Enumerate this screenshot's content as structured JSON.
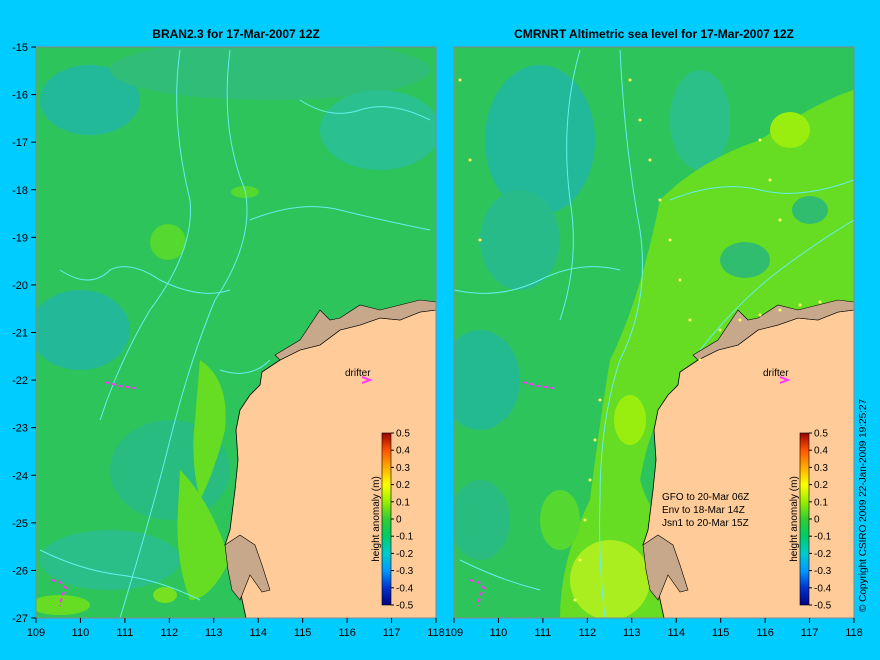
{
  "panels": [
    {
      "title": "BRAN2.3 for 17-Mar-2007 12Z",
      "drifter_label": "drifter",
      "obs_notes": []
    },
    {
      "title": "CMRNRT Altimetric sea level  for 17-Mar-2007 12Z",
      "drifter_label": "drifter",
      "obs_notes": [
        "GFO to 20-Mar 06Z",
        "Env to 18-Mar 14Z",
        "Jsn1 to 20-Mar 15Z"
      ]
    }
  ],
  "axes": {
    "lon": [
      109,
      110,
      111,
      112,
      113,
      114,
      115,
      116,
      117,
      118
    ],
    "lat": [
      -15,
      -16,
      -17,
      -18,
      -19,
      -20,
      -21,
      -22,
      -23,
      -24,
      -25,
      -26,
      -27
    ],
    "lon_range": [
      109,
      118
    ],
    "lat_range": [
      -27,
      -15
    ]
  },
  "colorbar": {
    "label": "height anomaly (m)",
    "ticks": [
      0.5,
      0.4,
      0.3,
      0.2,
      0.1,
      0,
      -0.1,
      -0.2,
      -0.3,
      -0.4,
      -0.5
    ],
    "tick_labels": [
      "0.5",
      "0.4",
      "0.3",
      "0.2",
      "0.1",
      "0",
      "-0.1",
      "-0.2",
      "-0.3",
      "-0.4",
      "-0.5"
    ],
    "range": [
      -0.5,
      0.5
    ]
  },
  "copyright": "© Copyright CSIRO 2009   22-Jan-2009 19:25:27",
  "colors": {
    "background": "#00ccff",
    "land": "#ffcc99",
    "shelf_land": "#c8a88a",
    "drifter": "#ff33ff",
    "contour": "#66eeee"
  }
}
